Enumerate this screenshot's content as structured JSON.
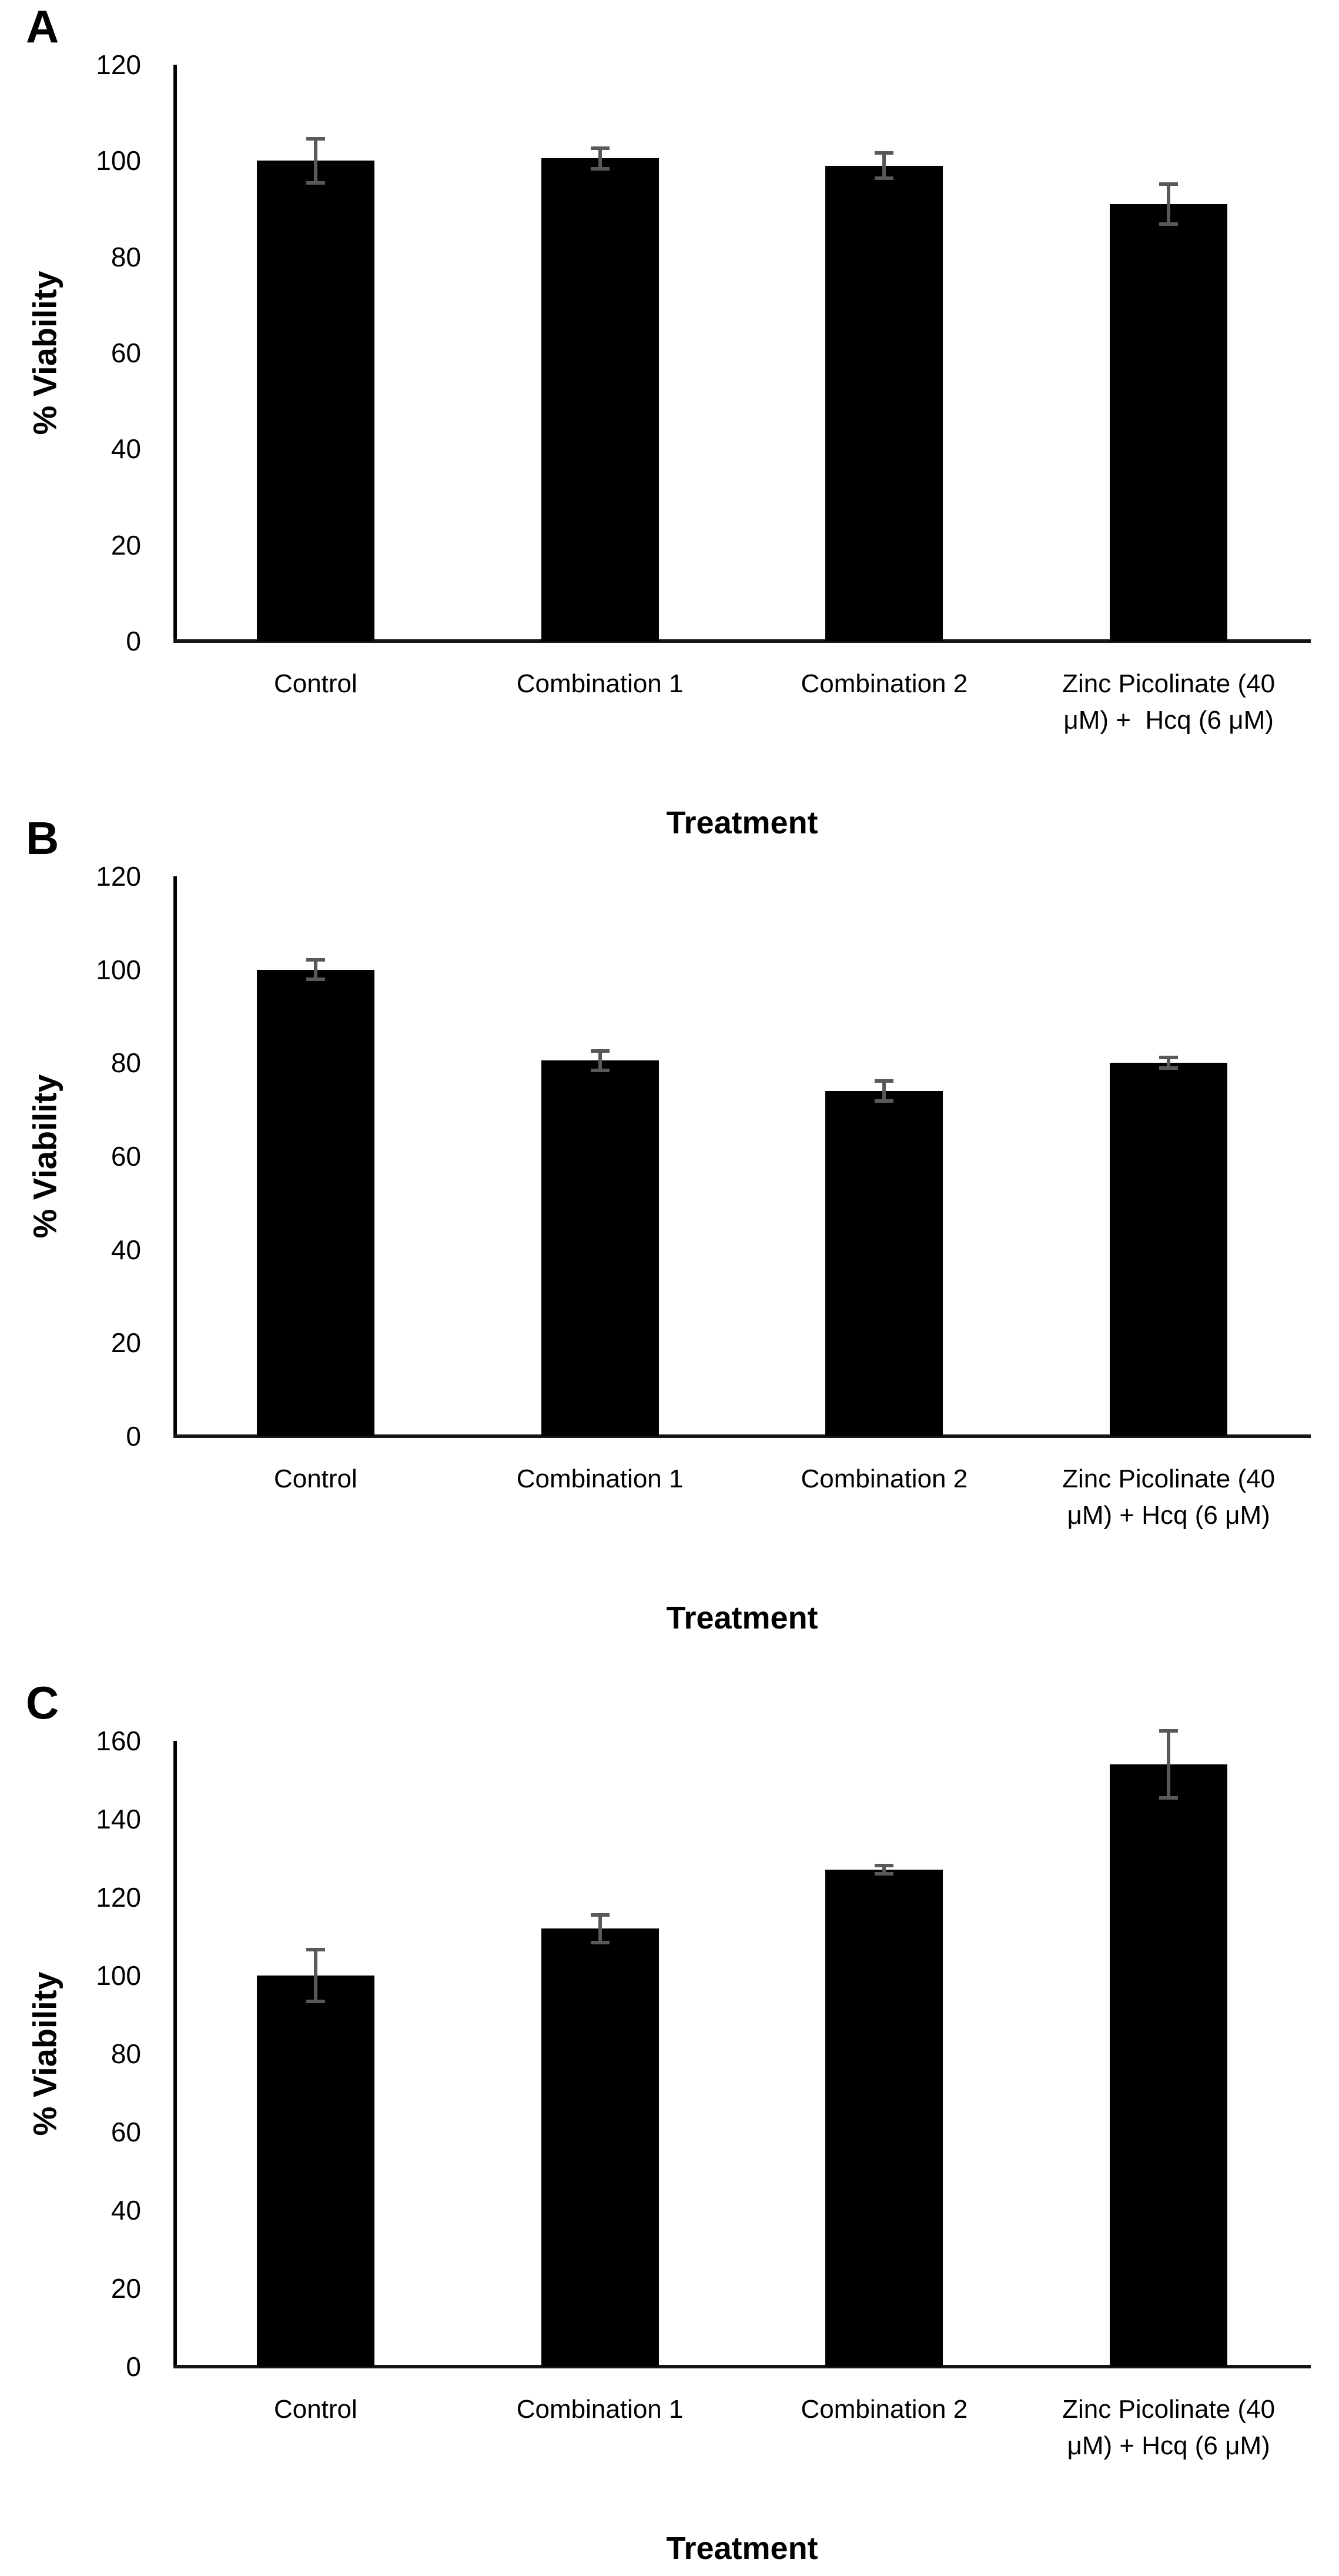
{
  "figure": {
    "background": "#ffffff",
    "text_color": "#000000",
    "bar_color": "#000000",
    "error_bar_color": "#595959",
    "axis_color": "#000000"
  },
  "chart_data": [
    {
      "type": "bar",
      "panel_label": "A",
      "title": "",
      "xlabel": "Treatment",
      "ylabel": "% Viability",
      "ylim": [
        0,
        120
      ],
      "ytick_step": 20,
      "ytick_labels": [
        "0",
        "20",
        "40",
        "60",
        "80",
        "100",
        "120"
      ],
      "grid": false,
      "legend": false,
      "categories": [
        "Control",
        "Combination 1",
        "Combination 2",
        "Zinc Picolinate (40\nμM) +  Hcq (6 μM)"
      ],
      "values": [
        100,
        100.5,
        99,
        91
      ],
      "errors": [
        5,
        2.5,
        3,
        4.5
      ],
      "bar_color": "#000000",
      "error_color": "#595959"
    },
    {
      "type": "bar",
      "panel_label": "B",
      "title": "",
      "xlabel": "Treatment",
      "ylabel": "% Viability",
      "ylim": [
        0,
        120
      ],
      "ytick_step": 20,
      "ytick_labels": [
        "0",
        "20",
        "40",
        "60",
        "80",
        "100",
        "120"
      ],
      "grid": false,
      "legend": false,
      "categories": [
        "Control",
        "Combination 1",
        "Combination 2",
        "Zinc Picolinate (40\nμM) + Hcq (6 μM)"
      ],
      "values": [
        100,
        80.5,
        74,
        80
      ],
      "errors": [
        2.5,
        2.5,
        2.5,
        1.5
      ],
      "bar_color": "#000000",
      "error_color": "#595959"
    },
    {
      "type": "bar",
      "panel_label": "C",
      "title": "",
      "xlabel": "Treatment",
      "ylabel": "% Viability",
      "ylim": [
        0,
        160
      ],
      "ytick_step": 20,
      "ytick_labels": [
        "0",
        "20",
        "40",
        "60",
        "80",
        "100",
        "120",
        "140",
        "160"
      ],
      "grid": false,
      "legend": false,
      "categories": [
        "Control",
        "Combination 1",
        "Combination 2",
        "Zinc Picolinate (40\nμM) + Hcq (6 μM)"
      ],
      "values": [
        100,
        112,
        127,
        154
      ],
      "errors": [
        7,
        4,
        1.5,
        9
      ],
      "bar_color": "#000000",
      "error_color": "#595959"
    }
  ]
}
